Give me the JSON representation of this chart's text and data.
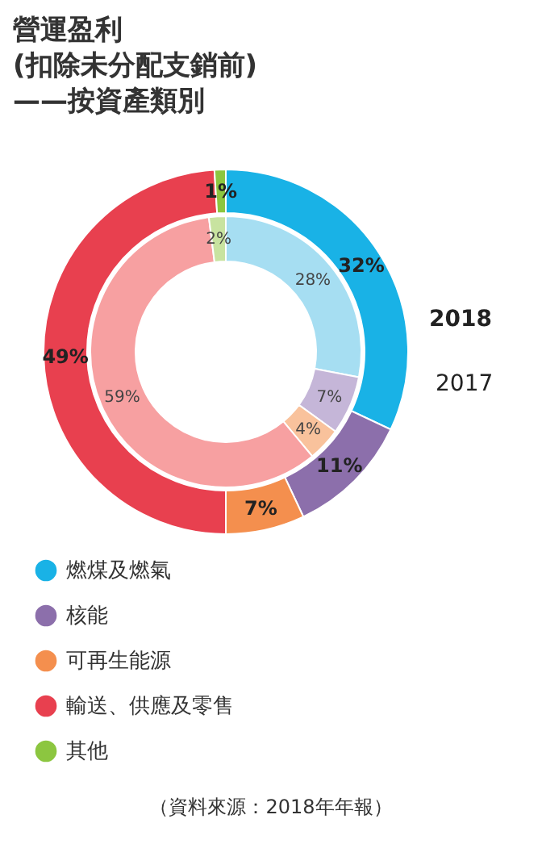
{
  "chart_data": {
    "type": "donut",
    "title": "營運盈利\n(扣除未分配支銷前)\n——按資產類別",
    "categories": [
      "燃煤及燃氣",
      "核能",
      "可再生能源",
      "輸送、供應及零售",
      "其他"
    ],
    "series": [
      {
        "name": "2018",
        "values": [
          32,
          11,
          7,
          49,
          1
        ],
        "colors": [
          "#19b2e6",
          "#8c6fab",
          "#f48f4e",
          "#e8404f",
          "#8cc640"
        ],
        "value_labels": [
          "32%",
          "11%",
          "7%",
          "49%",
          "1%"
        ]
      },
      {
        "name": "2017",
        "values": [
          28,
          7,
          4,
          59,
          2
        ],
        "colors": [
          "#a6def2",
          "#c5b6d8",
          "#f9c29c",
          "#f7a0a1",
          "#c8e3a0"
        ],
        "value_labels": [
          "28%",
          "7%",
          "4%",
          "59%",
          "2%"
        ]
      }
    ],
    "legend": "bottom left",
    "annotations": [
      "（資料來源：2018年年報）"
    ]
  }
}
